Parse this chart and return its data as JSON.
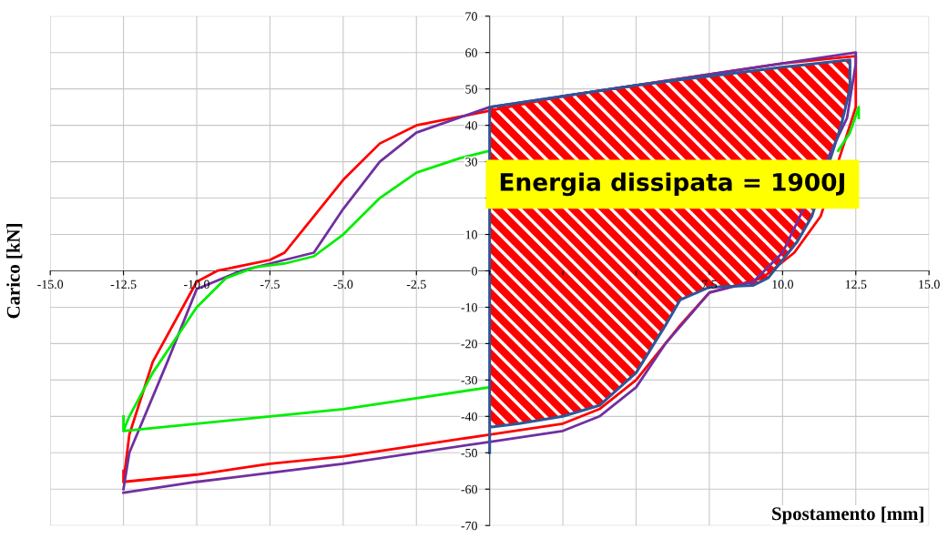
{
  "chart_data": {
    "type": "line",
    "xlabel": "Spostamento [mm]",
    "ylabel": "Carico [kN]",
    "annotations": [
      "Energia dissipata = 1900J"
    ],
    "xlim": [
      -15,
      15
    ],
    "ylim": [
      -70,
      70
    ],
    "xticks": [
      {
        "value": -15,
        "label": "-15.0"
      },
      {
        "value": -12.5,
        "label": "-12.5"
      },
      {
        "value": -10,
        "label": "-10.0"
      },
      {
        "value": -7.5,
        "label": "-7.5"
      },
      {
        "value": -5,
        "label": "-5.0"
      },
      {
        "value": -2.5,
        "label": "-2.5"
      },
      {
        "value": 0,
        "label": null
      },
      {
        "value": 2.5,
        "label": null
      },
      {
        "value": 5,
        "label": null
      },
      {
        "value": 7.5,
        "label": "7.5"
      },
      {
        "value": 10,
        "label": "10.0"
      },
      {
        "value": 12.5,
        "label": "12.5"
      },
      {
        "value": 15,
        "label": "15.0"
      }
    ],
    "yticks": [
      -70,
      -60,
      -50,
      -40,
      -30,
      -20,
      -10,
      0,
      10,
      {
        "value": 20,
        "label": null
      },
      30,
      40,
      50,
      60,
      70
    ],
    "grid": true,
    "legend": false,
    "marker": "none",
    "line_style": "solid",
    "series": [
      {
        "color": "#ff0000",
        "x": [
          -12.5,
          -12.3,
          -11.5,
          -10,
          -9.3,
          -7.5,
          -7,
          -6,
          -5,
          -3.75,
          -2.5,
          0,
          2.5,
          5,
          7.5,
          10,
          12.5,
          12.5,
          12.3,
          11.3,
          10.4,
          9.3,
          7.5,
          6.5,
          5,
          3.75,
          2.5,
          0,
          -2.5,
          -5,
          -7.5,
          -10,
          -12.5,
          -12.5
        ],
        "values": [
          -58,
          -45,
          -25,
          -3,
          0,
          3,
          5,
          15,
          25,
          35,
          40,
          44,
          48,
          51,
          54,
          57,
          59,
          45,
          40,
          15,
          5,
          -2,
          -6,
          -15,
          -30,
          -38,
          -42,
          -45,
          -48,
          -51,
          -53,
          -56,
          -58,
          -55
        ]
      },
      {
        "color": "#7030a0",
        "x": [
          -12.5,
          -12.3,
          -11,
          -10,
          -8.5,
          -7,
          -6,
          -5,
          -3.75,
          -2.5,
          0,
          5,
          10,
          12.5,
          12.5,
          12.2,
          10,
          9,
          7.5,
          6,
          5,
          3.75,
          2.5,
          0,
          -5,
          -10,
          -12.5
        ],
        "values": [
          -60,
          -50,
          -25,
          -5,
          0,
          3,
          5,
          17,
          30,
          38,
          45,
          51,
          57,
          60,
          57,
          42,
          5,
          -3,
          -6,
          -20,
          -32,
          -40,
          -44,
          -47,
          -53,
          -58,
          -61
        ]
      },
      {
        "color": "#00ee00",
        "x": [
          -12.5,
          -12.3,
          -11.5,
          -10,
          -9,
          -8,
          -7,
          -6,
          -5,
          -3.75,
          -2.5,
          -1,
          0,
          null,
          11.9,
          12.3,
          12.6,
          12.6,
          null,
          0,
          -2.5,
          -5,
          -7.5,
          -10,
          -12.5,
          -12.5
        ],
        "values": [
          -44,
          -40,
          -28,
          -10,
          -2,
          1,
          2,
          4,
          10,
          20,
          27,
          31,
          33,
          null,
          33,
          38,
          45,
          42,
          null,
          -32,
          -35,
          -38,
          -40,
          -42,
          -44,
          -40
        ]
      },
      {
        "type": "area",
        "color": "#2f5597",
        "x": [
          0,
          0,
          2.5,
          5,
          7.5,
          10,
          12.3,
          12.3,
          12,
          11,
          10.5,
          10,
          9.5,
          9,
          7.5,
          6.5,
          6,
          5,
          3.75,
          2.5,
          1,
          0,
          0
        ],
        "values": [
          -50,
          45,
          48,
          51,
          53.5,
          56,
          58,
          50,
          40,
          15,
          8,
          3,
          -2,
          -4,
          -4.5,
          -8,
          -15,
          -28,
          -37,
          -40,
          -42,
          -43,
          -50
        ]
      }
    ]
  }
}
